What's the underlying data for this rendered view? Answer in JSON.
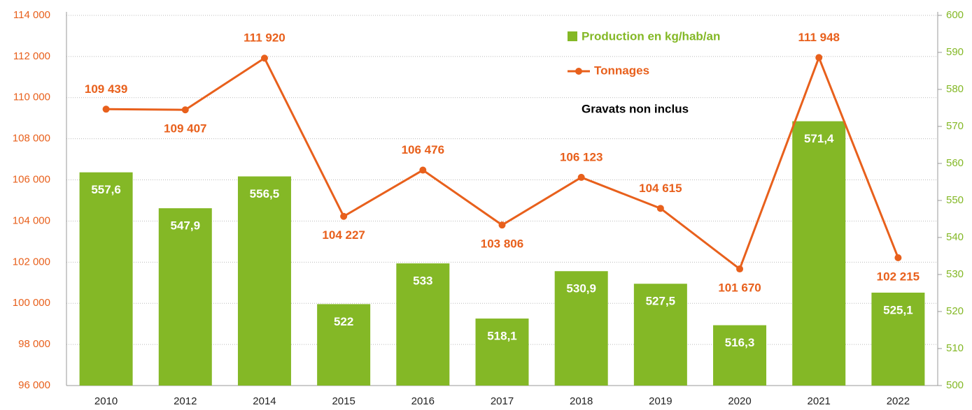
{
  "chart_data": {
    "type": "bar_line",
    "categories": [
      "2010",
      "2012",
      "2014",
      "2015",
      "2016",
      "2017",
      "2018",
      "2019",
      "2020",
      "2021",
      "2022"
    ],
    "series": [
      {
        "name": "Production en kg/hab/an",
        "type": "bar",
        "axis": "y2",
        "color": "#84b826",
        "values": [
          557.6,
          547.9,
          556.5,
          522,
          533,
          518.1,
          530.9,
          527.5,
          516.3,
          571.4,
          525.1
        ],
        "value_labels": [
          "557,6",
          "547,9",
          "556,5",
          "522",
          "533",
          "518,1",
          "530,9",
          "527,5",
          "516,3",
          "571,4",
          "525,1"
        ]
      },
      {
        "name": "Tonnages",
        "type": "line",
        "color": "#e8601c",
        "values": [
          109439,
          109407,
          111920,
          104227,
          106476,
          103806,
          106123,
          104615,
          101670,
          111948,
          102215
        ],
        "value_labels": [
          "109 439",
          "109 407",
          "111 920",
          "104 227",
          "106 476",
          "103 806",
          "106 123",
          "104 615",
          "101 670",
          "111 948",
          "102 215"
        ]
      }
    ],
    "ylim": [
      96000,
      114000
    ],
    "yticks": [
      {
        "value": 96000,
        "label": "96 000"
      },
      {
        "value": 98000,
        "label": "98 000"
      },
      {
        "value": 100000,
        "label": "100 000"
      },
      {
        "value": 102000,
        "label": "102 000"
      },
      {
        "value": 104000,
        "label": "104 000"
      },
      {
        "value": 106000,
        "label": "106 000"
      },
      {
        "value": 108000,
        "label": "108 000"
      },
      {
        "value": 110000,
        "label": "110 000"
      },
      {
        "value": 112000,
        "label": "112 000"
      },
      {
        "value": 114000,
        "label": "114 000"
      }
    ],
    "y2lim": [
      500,
      600
    ],
    "y2ticks": [
      500,
      510,
      520,
      530,
      540,
      550,
      560,
      570,
      580,
      590,
      600
    ],
    "annotation": "Gravats non inclus",
    "grid": true
  }
}
